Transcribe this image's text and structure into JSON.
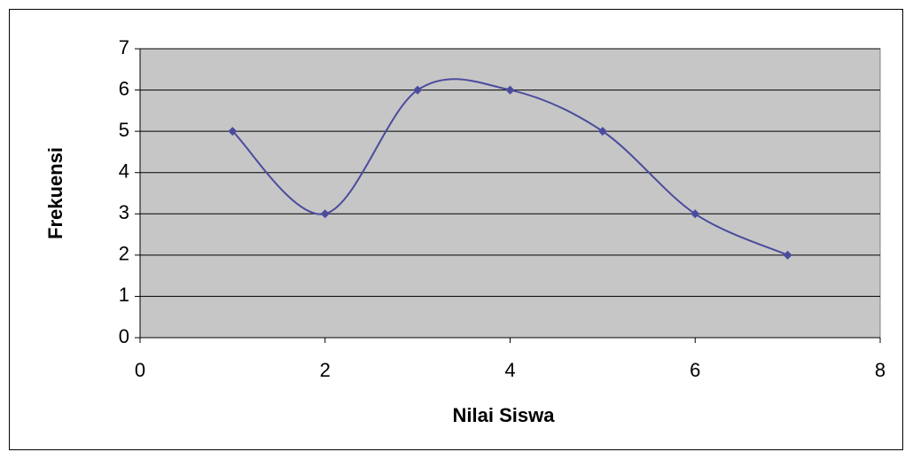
{
  "chart_data": {
    "type": "line",
    "smooth": true,
    "x_label": "Nilai Siswa",
    "y_label": "Frekuensi",
    "x": [
      1,
      2,
      3,
      4,
      5,
      6,
      7
    ],
    "series": [
      {
        "color": "#4b4b9e",
        "values": [
          5,
          3,
          6,
          6,
          5,
          3,
          2
        ]
      }
    ],
    "xlim": [
      0,
      8
    ],
    "xticks": [
      0,
      2,
      4,
      6,
      8
    ],
    "ylim": [
      0,
      7
    ],
    "yticks": [
      0,
      1,
      2,
      3,
      4,
      5,
      6,
      7
    ],
    "grid": true
  }
}
